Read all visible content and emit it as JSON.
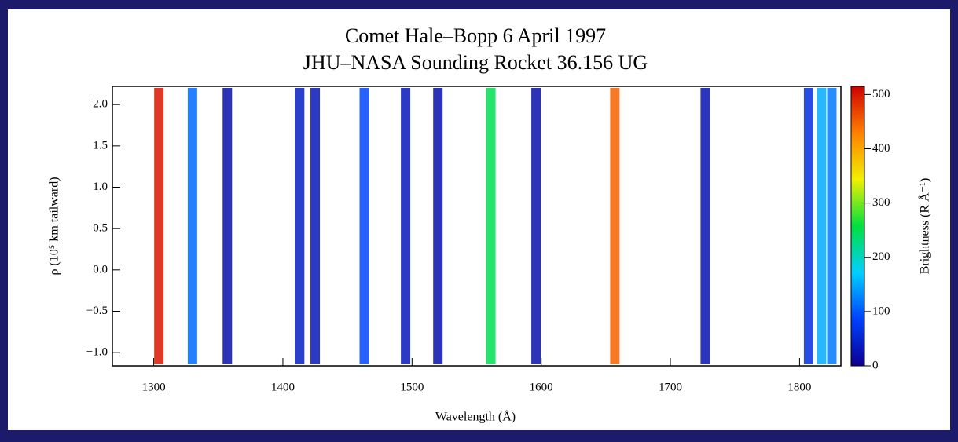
{
  "chart_data": {
    "type": "spectrum",
    "title": "Comet Hale–Bopp 6 April 1997",
    "subtitle": "JHU–NASA Sounding Rocket 36.156 UG",
    "x_label": "Wavelength (Å)",
    "y_label": "ρ (10⁵ km tailward)",
    "colorbar_label": "Brightness (R Å⁻¹)",
    "x": [
      1304,
      1330,
      1357,
      1413,
      1425,
      1463,
      1495,
      1520,
      1561,
      1596,
      1657,
      1727,
      1807,
      1817,
      1825
    ],
    "values": [
      500,
      110,
      20,
      40,
      30,
      90,
      30,
      20,
      250,
      20,
      450,
      25,
      60,
      150,
      120
    ],
    "xlim": [
      1268,
      1832
    ],
    "xticks": [
      1300,
      1400,
      1500,
      1600,
      1700,
      1800
    ],
    "ylim": [
      -1.16,
      2.22
    ],
    "yticks": [
      {
        "value": 2.0,
        "label": "2.0"
      },
      {
        "value": 1.5,
        "label": "1.5"
      },
      {
        "value": 1.0,
        "label": "1.0"
      },
      {
        "value": 0.5,
        "label": "0.5"
      },
      {
        "value": 0.0,
        "label": "0.0"
      },
      {
        "value": -0.5,
        "label": "−0.5"
      },
      {
        "value": -1.0,
        "label": "−1.0"
      }
    ],
    "clim": [
      0,
      515
    ],
    "cticks": [
      0,
      100,
      200,
      300,
      400,
      500
    ],
    "colormap": [
      "#0a0090",
      "#0040ff",
      "#00d0ff",
      "#00e040",
      "#f0f000",
      "#ff8000",
      "#d00000"
    ]
  }
}
